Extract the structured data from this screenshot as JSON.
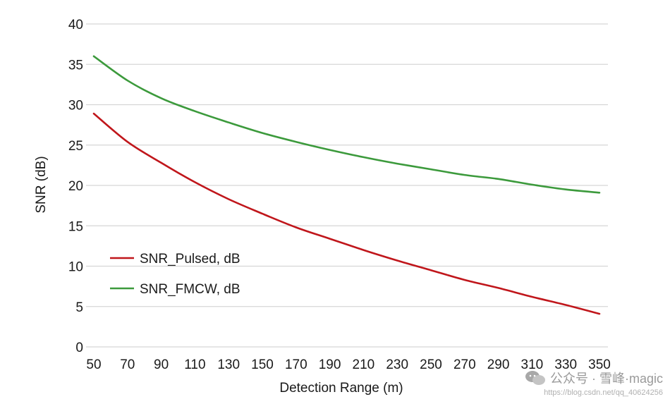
{
  "chart_data": {
    "type": "line",
    "title": "",
    "xlabel": "Detection Range (m)",
    "ylabel": "SNR (dB)",
    "xlim": [
      50,
      350
    ],
    "ylim": [
      0,
      40
    ],
    "xticks": [
      50,
      70,
      90,
      110,
      130,
      150,
      170,
      190,
      210,
      230,
      250,
      270,
      290,
      310,
      330,
      350
    ],
    "yticks": [
      0,
      5,
      10,
      15,
      20,
      25,
      30,
      35,
      40
    ],
    "grid": "horizontal",
    "legend_position": "lower-left",
    "x": [
      50,
      70,
      90,
      110,
      130,
      150,
      170,
      190,
      210,
      230,
      250,
      270,
      290,
      310,
      330,
      350
    ],
    "series": [
      {
        "name": "SNR_Pulsed, dB",
        "color": "#c0161b",
        "values": [
          28.9,
          25.4,
          22.8,
          20.4,
          18.3,
          16.5,
          14.8,
          13.4,
          12.0,
          10.7,
          9.5,
          8.3,
          7.3,
          6.2,
          5.2,
          4.1
        ]
      },
      {
        "name": "SNR_FMCW, dB",
        "color": "#3c9a3c",
        "values": [
          36.0,
          33.0,
          30.8,
          29.2,
          27.8,
          26.5,
          25.4,
          24.4,
          23.5,
          22.7,
          22.0,
          21.3,
          20.8,
          20.1,
          19.5,
          19.1
        ]
      }
    ]
  },
  "watermark": {
    "text": "公众号 · 雪峰·magic",
    "url": "https://blog.csdn.net/qq_40624256"
  }
}
